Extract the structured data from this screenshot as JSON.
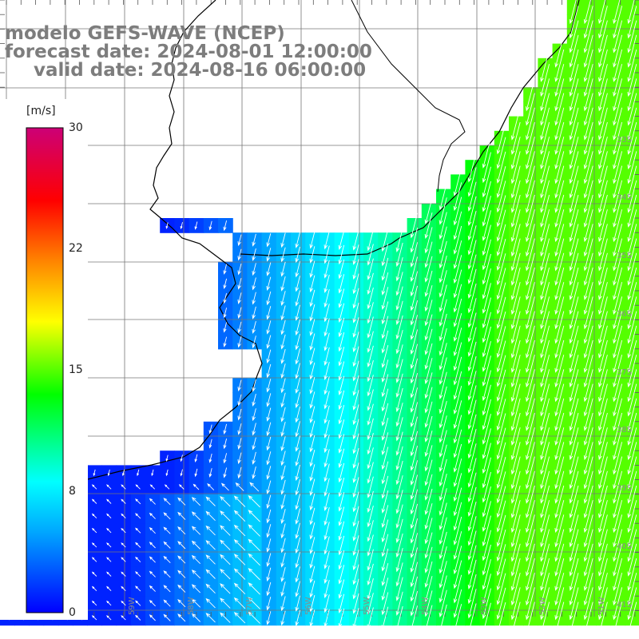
{
  "header": {
    "line1": "modelo GEFS-WAVE (NCEP)",
    "line2": "forecast date: 2024-08-01 12:00:00",
    "line3": "valid date: 2024-08-16 06:00:00"
  },
  "colorbar": {
    "unit": "[m/s]",
    "ticks": [
      "30",
      "22",
      "15",
      "8",
      "0"
    ],
    "tick_values": [
      30,
      22,
      15,
      8,
      0
    ],
    "colors": [
      "#0000ff",
      "#00aaff",
      "#00ffff",
      "#00ff00",
      "#ffff00",
      "#ff7f00",
      "#ff0000",
      "#cc0077"
    ],
    "range": [
      0,
      30
    ]
  },
  "map": {
    "lat_labels": [
      "33S",
      "34S",
      "35S",
      "36S",
      "37S",
      "38S",
      "39S",
      "40S",
      "41S"
    ],
    "lon_labels": [
      "61W",
      "60W",
      "59W",
      "58W",
      "57W",
      "56W",
      "55W",
      "54W",
      "53W",
      "52W",
      "51W"
    ],
    "land_color": "#ffffff",
    "grid_color": "#777777",
    "coast_color": "#000000",
    "arrow_color": "#ffffff",
    "variable": "wind speed and direction"
  }
}
